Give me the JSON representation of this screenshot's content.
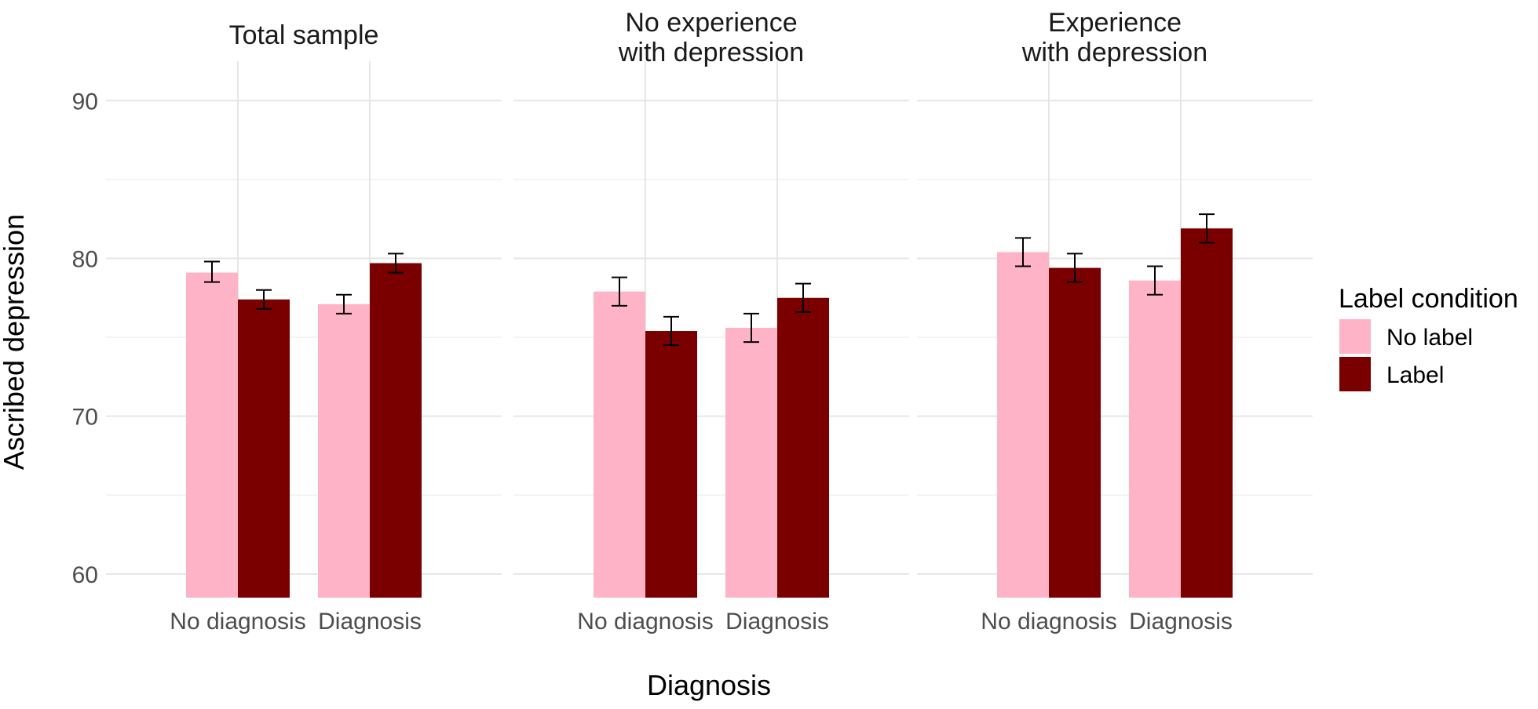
{
  "chart_data": {
    "type": "bar",
    "xlabel": "Diagnosis",
    "ylabel": "Ascribed depression",
    "ylim": [
      58.5,
      92.5
    ],
    "yticks": [
      60,
      70,
      80,
      90
    ],
    "ytick_labels": [
      "60",
      "70",
      "80",
      "90"
    ],
    "categories": [
      "No diagnosis",
      "Diagnosis"
    ],
    "grid": true,
    "legend": {
      "title": "Label condition",
      "position": "right",
      "entries": [
        {
          "name": "No label",
          "color": "#ffb3c6"
        },
        {
          "name": "Label",
          "color": "#7a0000"
        }
      ]
    },
    "panels": [
      {
        "title_lines": [
          "Total sample"
        ],
        "series": [
          {
            "name": "No label",
            "values": [
              79.1,
              77.1
            ],
            "ci_low": [
              78.5,
              76.5
            ],
            "ci_high": [
              79.8,
              77.7
            ]
          },
          {
            "name": "Label",
            "values": [
              77.4,
              79.7
            ],
            "ci_low": [
              76.8,
              79.1
            ],
            "ci_high": [
              78.0,
              80.3
            ]
          }
        ]
      },
      {
        "title_lines": [
          "No experience",
          "with depression"
        ],
        "series": [
          {
            "name": "No label",
            "values": [
              77.9,
              75.6
            ],
            "ci_low": [
              77.0,
              74.7
            ],
            "ci_high": [
              78.8,
              76.5
            ]
          },
          {
            "name": "Label",
            "values": [
              75.4,
              77.5
            ],
            "ci_low": [
              74.5,
              76.6
            ],
            "ci_high": [
              76.3,
              78.4
            ]
          }
        ]
      },
      {
        "title_lines": [
          "Experience",
          "with depression"
        ],
        "series": [
          {
            "name": "No label",
            "values": [
              80.4,
              78.6
            ],
            "ci_low": [
              79.5,
              77.7
            ],
            "ci_high": [
              81.3,
              79.5
            ]
          },
          {
            "name": "Label",
            "values": [
              79.4,
              81.9
            ],
            "ci_low": [
              78.5,
              81.0
            ],
            "ci_high": [
              80.3,
              82.8
            ]
          }
        ]
      }
    ]
  }
}
